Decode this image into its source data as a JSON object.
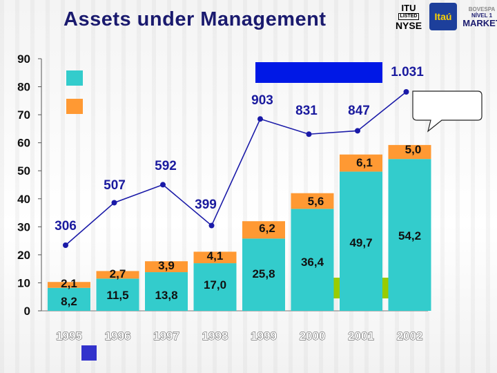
{
  "page": {
    "title": "Assets under Management"
  },
  "logos": {
    "nyse_top": "ITU",
    "nyse_mid": "LISTED",
    "nyse_bottom": "NYSE",
    "itau": "Itaú",
    "market_top": "BOVESPA",
    "market_mid": "NÍVEL 1",
    "market_bottom": "MARKET"
  },
  "colors": {
    "bar_bottom": "#33cccc",
    "bar_top": "#ff9933",
    "line": "#1a1aa8",
    "legend_blue_box": "#0018e6",
    "legend_green_box": "#99cc00",
    "legend_bottom_square": "#3333cc"
  },
  "chart_data": {
    "type": "bar",
    "categories": [
      "1995",
      "1996",
      "1997",
      "1998",
      "1999",
      "2000",
      "2001",
      "2002"
    ],
    "ylim": [
      0,
      90
    ],
    "yticks": [
      0,
      10,
      20,
      30,
      40,
      50,
      60,
      70,
      80,
      90
    ],
    "grid": false,
    "series": [
      {
        "values": [
          8.2,
          11.5,
          13.8,
          17.0,
          25.8,
          36.4,
          49.7,
          54.2
        ],
        "labels": [
          "8,2",
          "11,5",
          "13,8",
          "17,0",
          "25,8",
          "36,4",
          "49,7",
          "54,2"
        ]
      },
      {
        "values": [
          2.1,
          2.7,
          3.9,
          4.1,
          6.2,
          5.6,
          6.1,
          5.0
        ],
        "labels": [
          "2,1",
          "2,7",
          "3,9",
          "4,1",
          "6,2",
          "5,6",
          "6,1",
          "5,0"
        ]
      },
      {
        "values": [
          306,
          507,
          592,
          399,
          903,
          831,
          847,
          1031
        ],
        "labels": [
          "306",
          "507",
          "592",
          "399",
          "903",
          "831",
          "847",
          "1.031"
        ]
      }
    ]
  }
}
